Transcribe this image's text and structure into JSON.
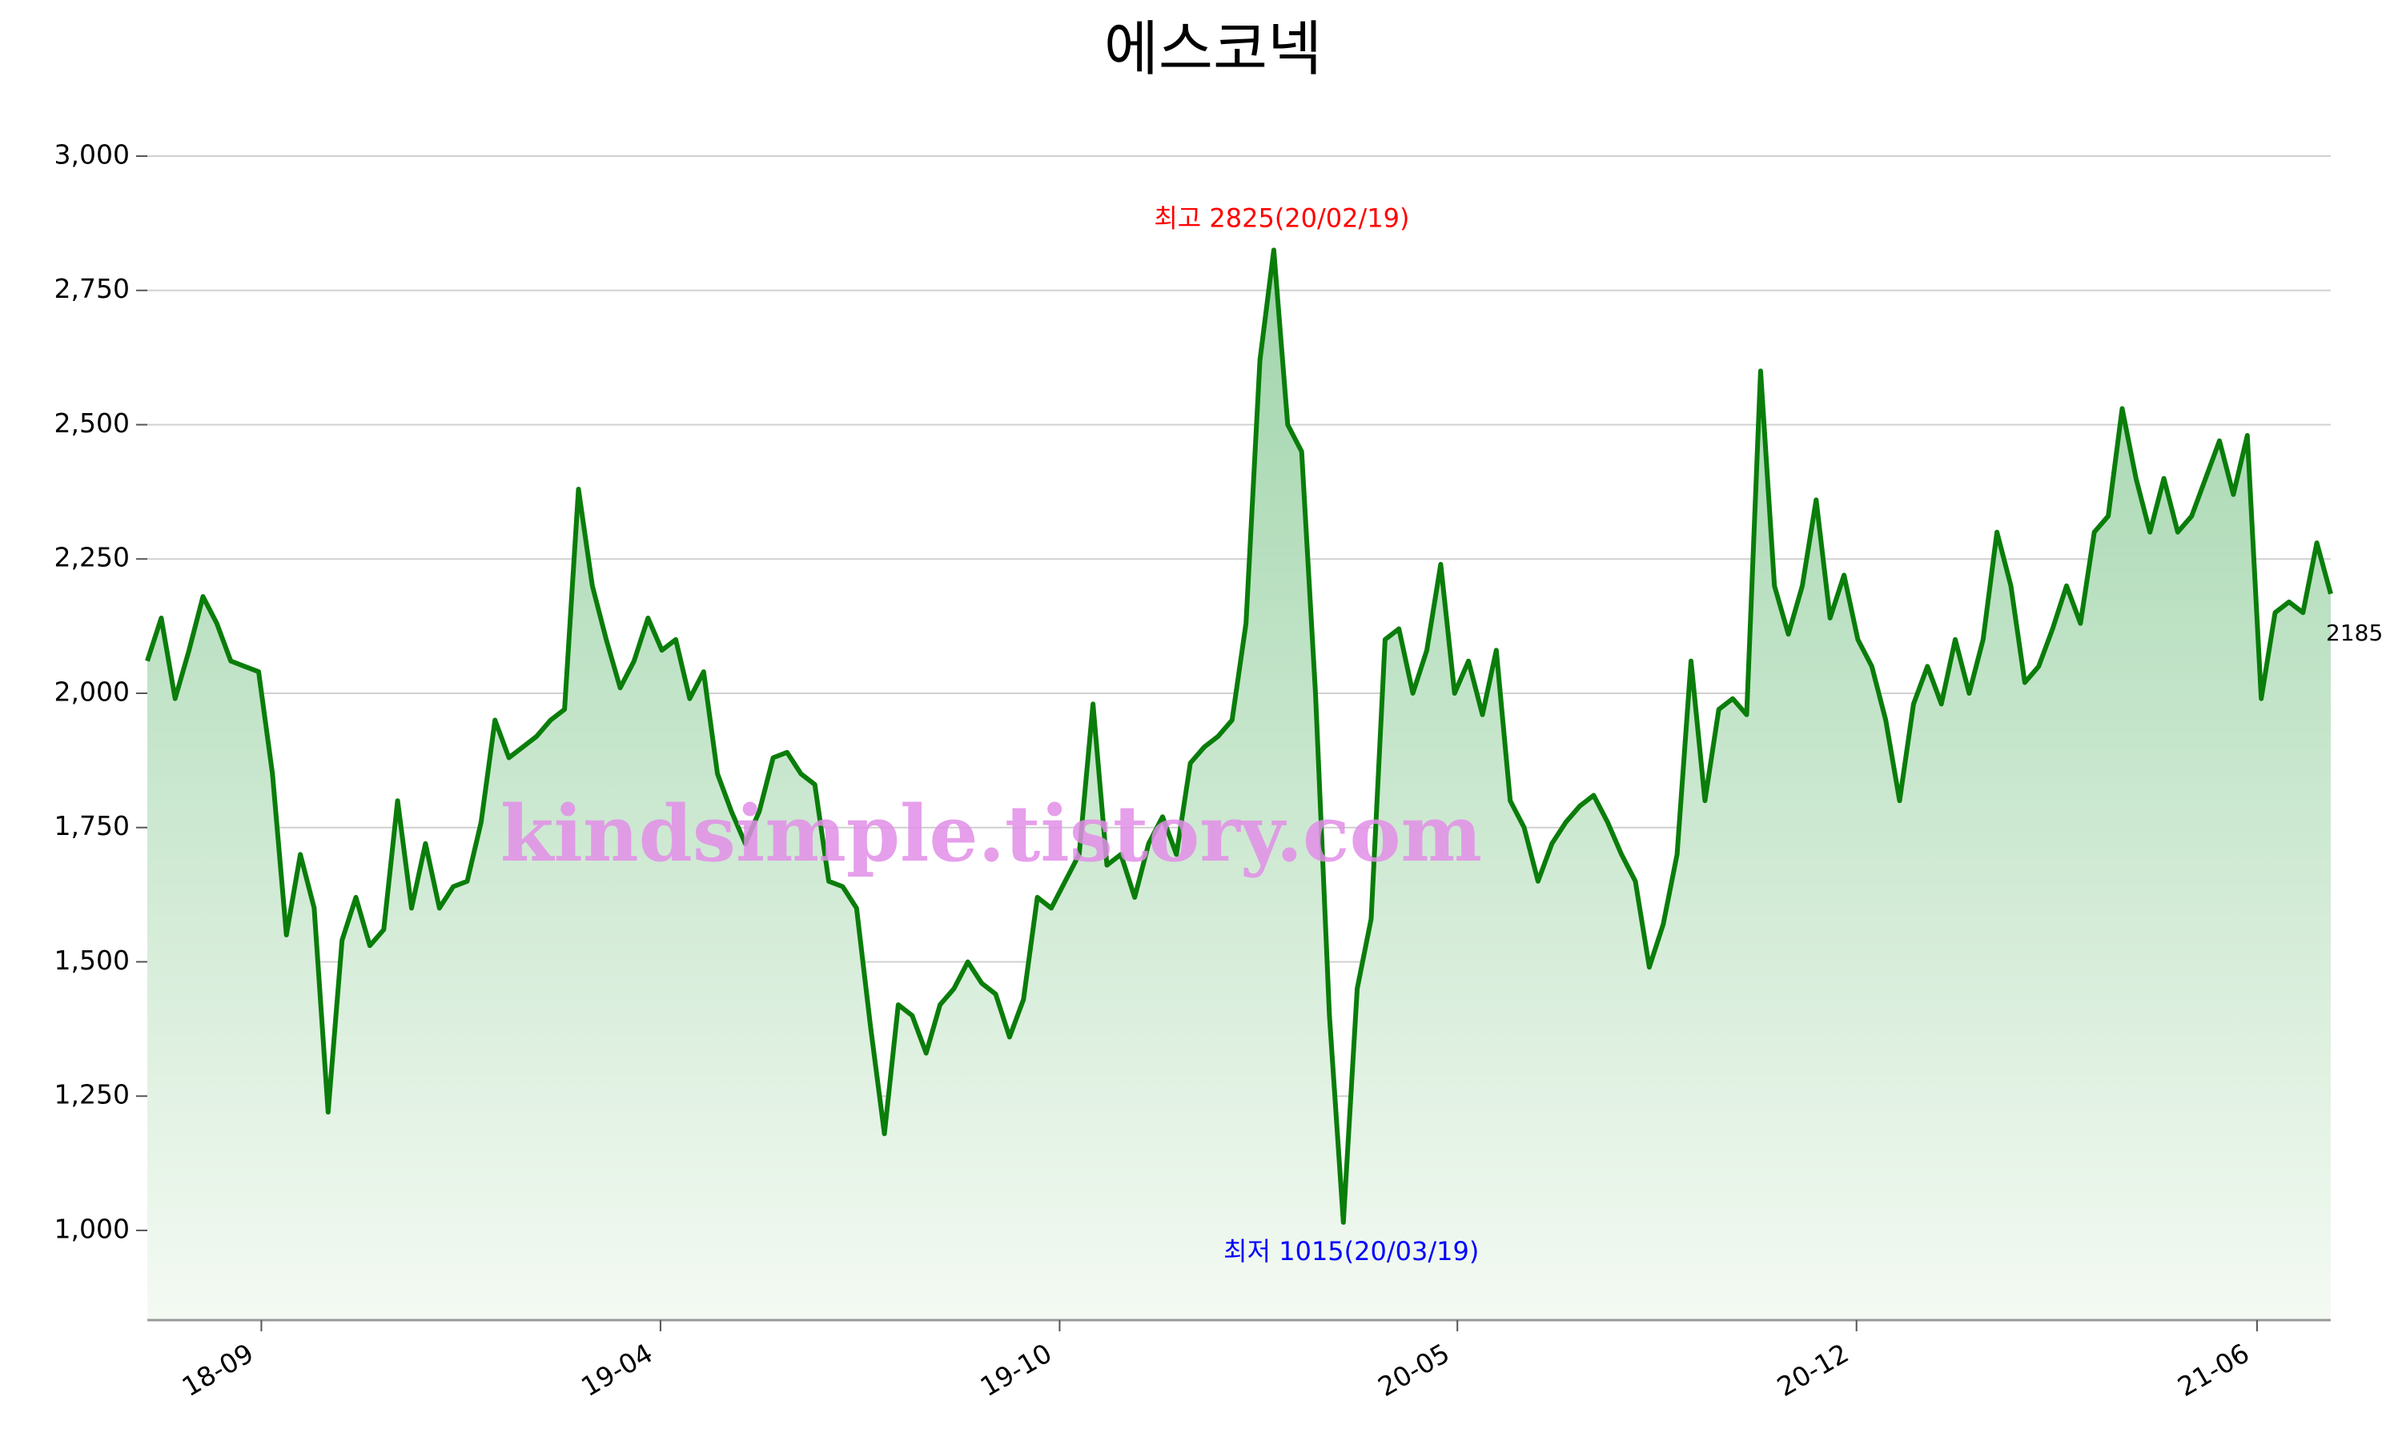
{
  "chart_data": {
    "type": "line",
    "title": "에스코넥",
    "series": [
      {
        "name": "에스코넥",
        "color": "#0a7d0a",
        "fill_top": "#9fd4aa",
        "fill_bottom": "#f4faf3",
        "values": [
          2060,
          2140,
          1990,
          2080,
          2180,
          2130,
          2060,
          2050,
          2040,
          1850,
          1550,
          1700,
          1600,
          1220,
          1540,
          1620,
          1530,
          1560,
          1800,
          1600,
          1720,
          1600,
          1640,
          1650,
          1760,
          1950,
          1880,
          1900,
          1920,
          1950,
          1970,
          2380,
          2200,
          2100,
          2010,
          2060,
          2140,
          2080,
          2100,
          1990,
          2040,
          1850,
          1780,
          1720,
          1780,
          1880,
          1890,
          1850,
          1830,
          1650,
          1640,
          1600,
          1380,
          1180,
          1420,
          1400,
          1330,
          1420,
          1450,
          1500,
          1460,
          1440,
          1360,
          1430,
          1620,
          1600,
          1650,
          1700,
          1980,
          1680,
          1700,
          1620,
          1720,
          1770,
          1700,
          1870,
          1900,
          1920,
          1950,
          2130,
          2620,
          2825,
          2500,
          2450,
          2000,
          1400,
          1015,
          1450,
          1580,
          2100,
          2120,
          2000,
          2080,
          2240,
          2000,
          2060,
          1960,
          2080,
          1800,
          1750,
          1650,
          1720,
          1760,
          1790,
          1810,
          1760,
          1700,
          1650,
          1490,
          1570,
          1700,
          2060,
          1800,
          1970,
          1990,
          1960,
          2600,
          2200,
          2110,
          2200,
          2360,
          2140,
          2220,
          2100,
          2050,
          1950,
          1800,
          1980,
          2050,
          1980,
          2100,
          2000,
          2100,
          2300,
          2200,
          2020,
          2050,
          2120,
          2200,
          2130,
          2300,
          2330,
          2530,
          2400,
          2300,
          2400,
          2300,
          2330,
          2400,
          2470,
          2370,
          2480,
          1990,
          2150,
          2170,
          2150,
          2280,
          2185
        ]
      }
    ],
    "xlim": [
      0,
      157
    ],
    "xticks": [
      {
        "value": 8.2,
        "label": "18-09"
      },
      {
        "value": 36.9,
        "label": "19-04"
      },
      {
        "value": 65.6,
        "label": "19-10"
      },
      {
        "value": 94.2,
        "label": "20-05"
      },
      {
        "value": 122.9,
        "label": "20-12"
      },
      {
        "value": 151.7,
        "label": "21-06"
      }
    ],
    "ylim": [
      833,
      3000
    ],
    "yticks": [
      {
        "value": 1000,
        "label": "1,000"
      },
      {
        "value": 1250,
        "label": "1,250"
      },
      {
        "value": 1500,
        "label": "1,500"
      },
      {
        "value": 1750,
        "label": "1,750"
      },
      {
        "value": 2000,
        "label": "2,000"
      },
      {
        "value": 2250,
        "label": "2,250"
      },
      {
        "value": 2500,
        "label": "2,500"
      },
      {
        "value": 2750,
        "label": "2,750"
      },
      {
        "value": 3000,
        "label": "3,000"
      }
    ],
    "grid": true,
    "annotations": [
      {
        "text": "최고 2825(20/02/19)",
        "index": 81,
        "color": "#ff0000",
        "position": "above"
      },
      {
        "text": "최저 1015(20/03/19)",
        "index": 86,
        "color": "#0000ff",
        "position": "below"
      }
    ],
    "watermark": "kindsimple.tistory.com"
  }
}
